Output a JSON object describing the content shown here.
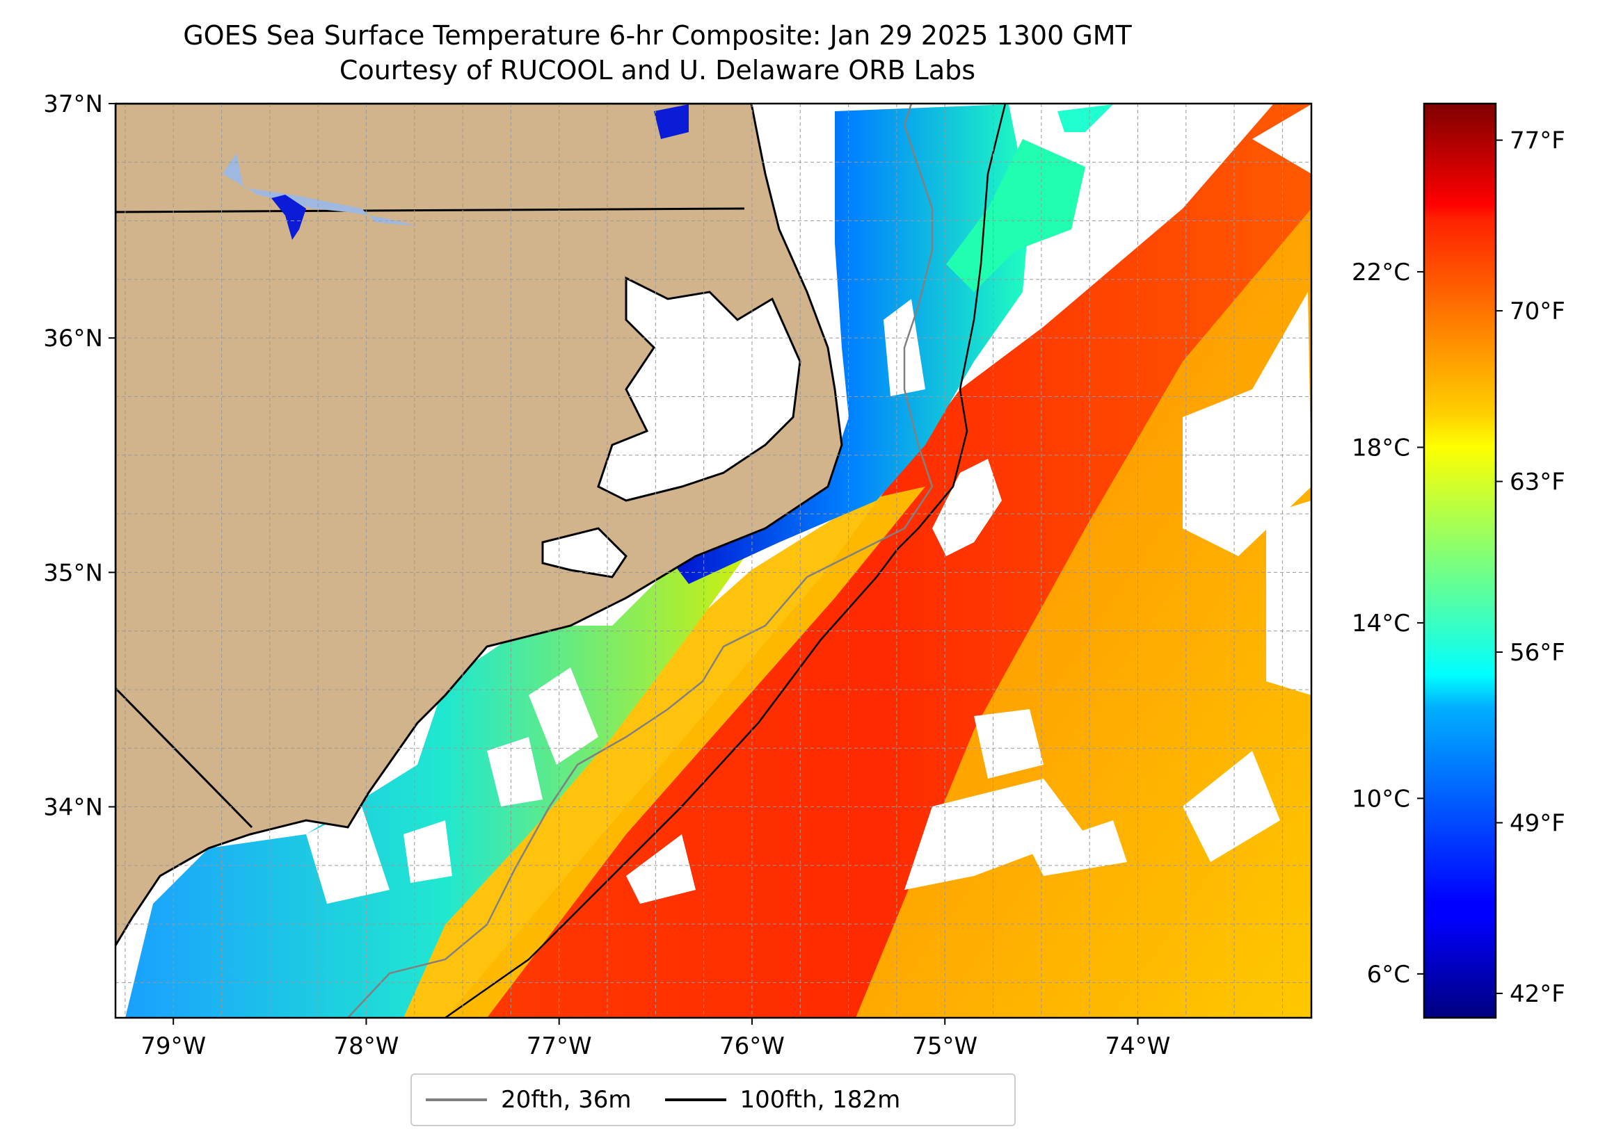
{
  "title": {
    "line1": "GOES Sea Surface Temperature 6-hr Composite: Jan 29 2025 1300 GMT",
    "line2": "Courtesy of RUCOOL and U. Delaware ORB Labs"
  },
  "map": {
    "lon_range": [
      -79.3,
      -73.1
    ],
    "lat_range": [
      33.1,
      37.0
    ],
    "lat_ticks": [
      {
        "value": 34,
        "label": "34°N"
      },
      {
        "value": 35,
        "label": "35°N"
      },
      {
        "value": 36,
        "label": "36°N"
      },
      {
        "value": 37,
        "label": "37°N"
      }
    ],
    "lon_ticks": [
      {
        "value": -79,
        "label": "79°W"
      },
      {
        "value": -78,
        "label": "78°W"
      },
      {
        "value": -77,
        "label": "77°W"
      },
      {
        "value": -76,
        "label": "76°W"
      },
      {
        "value": -75,
        "label": "75°W"
      },
      {
        "value": -74,
        "label": "74°W"
      }
    ],
    "grid": true,
    "colors": {
      "land": "#d2b48c",
      "lakes": "#9fb8e0",
      "grid": "#999999",
      "coast": "#000000",
      "isobath_20": "#808080",
      "isobath_100": "#000000"
    }
  },
  "legend": {
    "items": [
      {
        "label": "20fth, 36m",
        "color": "#808080"
      },
      {
        "label": "100fth, 182m",
        "color": "#000000"
      }
    ],
    "placement": "bottom-center"
  },
  "colorbar": {
    "colormap": "jet",
    "range_f": [
      41,
      78.5
    ],
    "celsius_ticks": [
      {
        "value": 6,
        "label": "6°C"
      },
      {
        "value": 10,
        "label": "10°C"
      },
      {
        "value": 14,
        "label": "14°C"
      },
      {
        "value": 18,
        "label": "18°C"
      },
      {
        "value": 22,
        "label": "22°C"
      }
    ],
    "fahrenheit_ticks": [
      {
        "value": 42,
        "label": "42°F"
      },
      {
        "value": 49,
        "label": "49°F"
      },
      {
        "value": 56,
        "label": "56°F"
      },
      {
        "value": 63,
        "label": "63°F"
      },
      {
        "value": 70,
        "label": "70°F"
      },
      {
        "value": 77,
        "label": "77°F"
      }
    ]
  }
}
